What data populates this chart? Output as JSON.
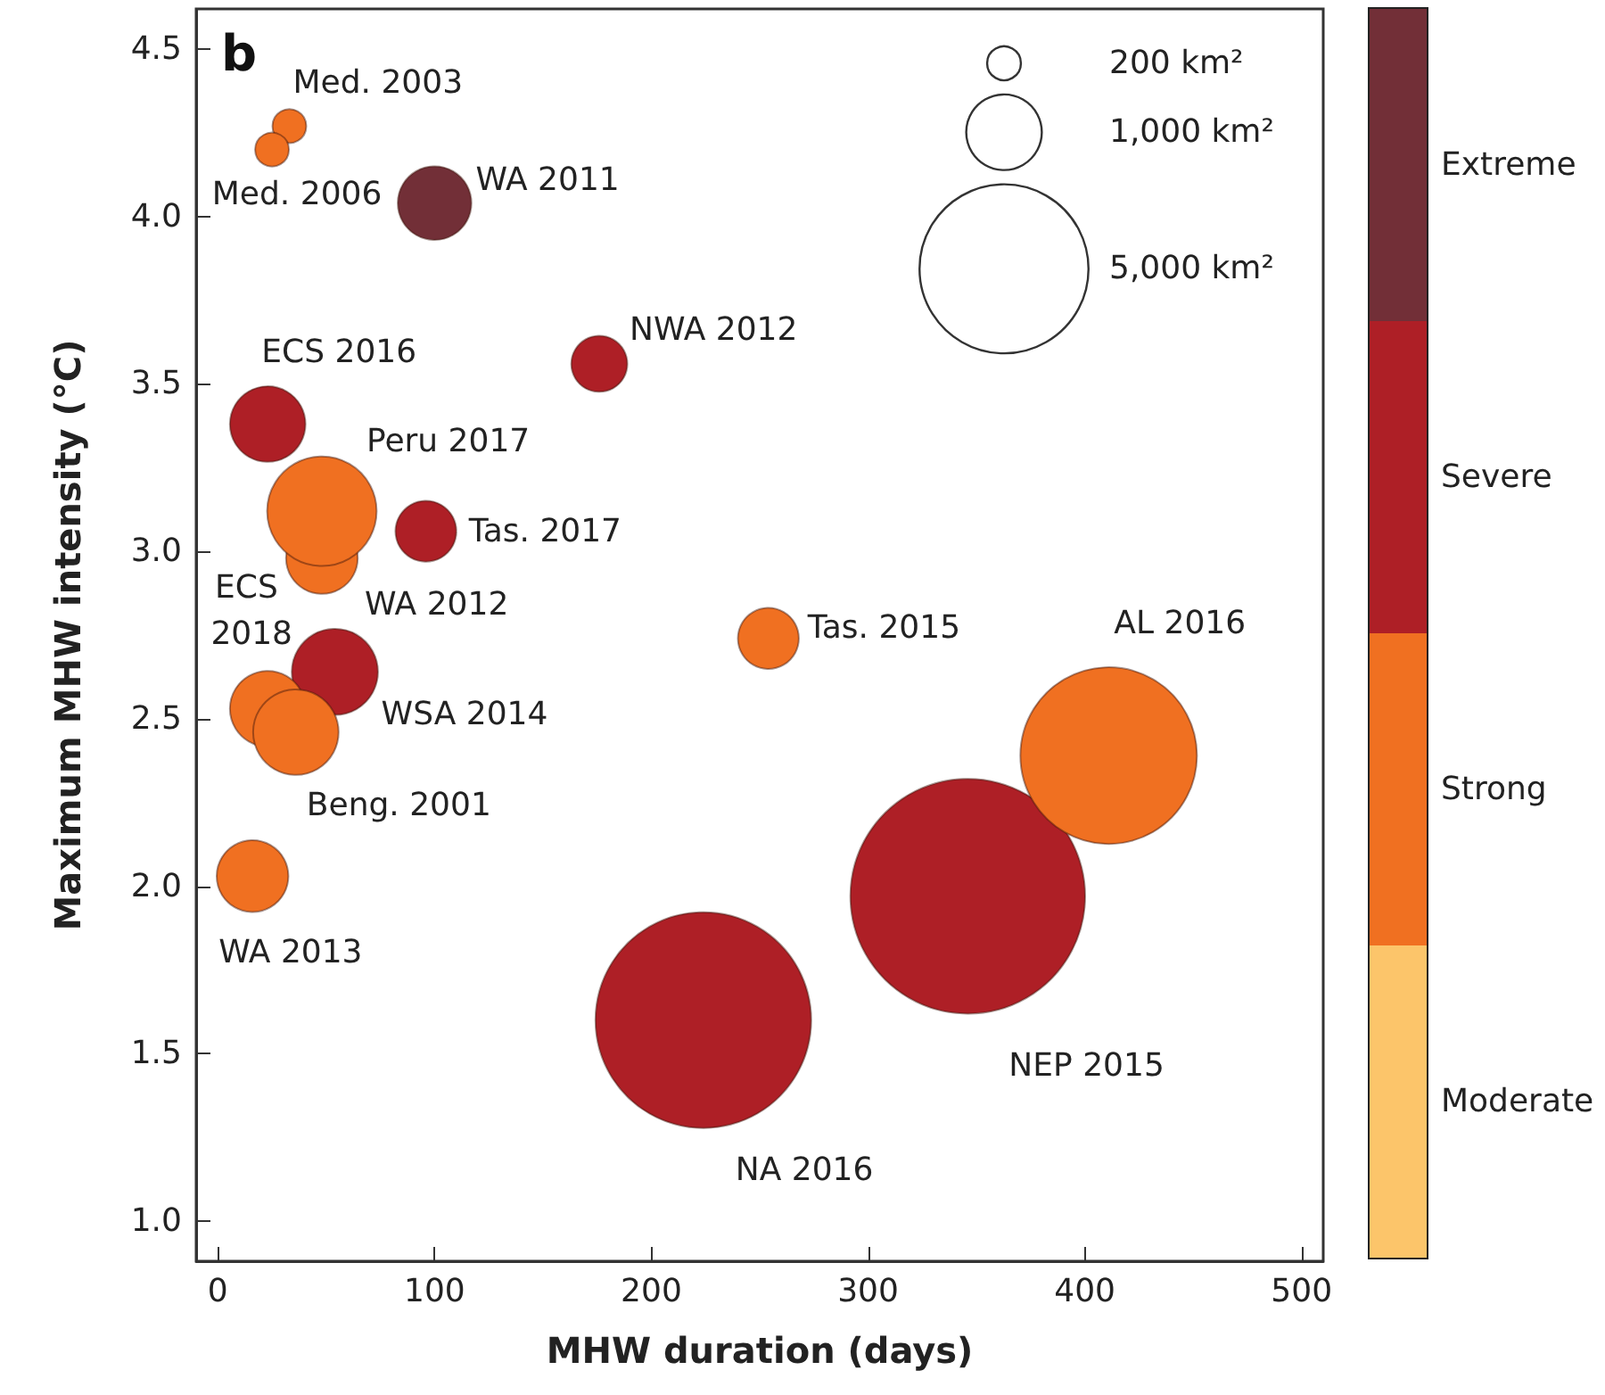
{
  "chart_data": {
    "type": "bubble",
    "title": "b",
    "xlabel": "MHW duration (days)",
    "ylabel": "Maximum MHW intensity (°C)",
    "xlim": [
      -10,
      510
    ],
    "ylim": [
      0.88,
      4.62
    ],
    "xticks": [
      0,
      100,
      200,
      300,
      400,
      500
    ],
    "yticks": [
      {
        "value": 1,
        "label": "1.0"
      },
      {
        "value": 1.5,
        "label": "1.5"
      },
      {
        "value": 2,
        "label": "2.0"
      },
      {
        "value": 2.5,
        "label": "2.5"
      },
      {
        "value": 3,
        "label": "3.0"
      },
      {
        "value": 3.5,
        "label": "3.5"
      },
      {
        "value": 4,
        "label": "4.0"
      },
      {
        "value": 4.5,
        "label": "4.5"
      }
    ],
    "marker": "circle",
    "legend": "right",
    "grid": false,
    "size_legend": [
      {
        "value": 200,
        "label": "200 km²"
      },
      {
        "value": 1000,
        "label": "1,000 km²"
      },
      {
        "value": 5000,
        "label": "5,000 km²"
      }
    ],
    "series": [
      {
        "name": "Extreme",
        "color": "#722f37",
        "x": [
          100
        ],
        "values": [
          4.04
        ],
        "sizes": [
          950
        ]
      },
      {
        "name": "Severe",
        "color": "#ae1f26",
        "x": [
          176,
          23,
          96,
          54,
          224,
          346
        ],
        "values": [
          3.56,
          3.38,
          3.06,
          2.64,
          1.6,
          1.97
        ],
        "sizes": [
          550,
          1000,
          650,
          1300,
          8150,
          9650
        ]
      },
      {
        "name": "Strong",
        "color": "#f07021",
        "x": [
          33,
          25,
          48,
          48,
          254,
          23,
          36,
          16,
          411
        ],
        "values": [
          4.27,
          4.2,
          2.98,
          3.12,
          2.74,
          2.53,
          2.46,
          2.03,
          2.39
        ],
        "sizes": [
          200,
          200,
          900,
          2100,
          650,
          1000,
          1280,
          900,
          5460
        ]
      },
      {
        "name": "Moderate",
        "color": "#fcc56a"
      }
    ],
    "annotations": [
      {
        "text": "Med. 2003",
        "x": 33,
        "y": 4.27
      },
      {
        "text": "Med. 2006",
        "x": 25,
        "y": 4.2
      },
      {
        "text": "WA 2011",
        "x": 100,
        "y": 4.04
      },
      {
        "text": "NWA 2012",
        "x": 176,
        "y": 3.56
      },
      {
        "text": "ECS 2016",
        "x": 23,
        "y": 3.38
      },
      {
        "text": "Peru 2017",
        "x": 48,
        "y": 3.12
      },
      {
        "text": "WA 2012",
        "x": 48,
        "y": 2.98
      },
      {
        "text": "Tas. 2017",
        "x": 96,
        "y": 3.06
      },
      {
        "text": "Tas. 2015",
        "x": 254,
        "y": 2.74
      },
      "AL 2016",
      {
        "text": "WSA 2014",
        "x": 54,
        "y": 2.64
      },
      {
        "text": "ECS 2018",
        "x": 23,
        "y": 2.53
      },
      {
        "text": "Beng. 2001",
        "x": 36,
        "y": 2.46
      },
      {
        "text": "WA 2013",
        "x": 16,
        "y": 2.03
      },
      "NA 2016",
      "NEP 2015"
    ]
  }
}
